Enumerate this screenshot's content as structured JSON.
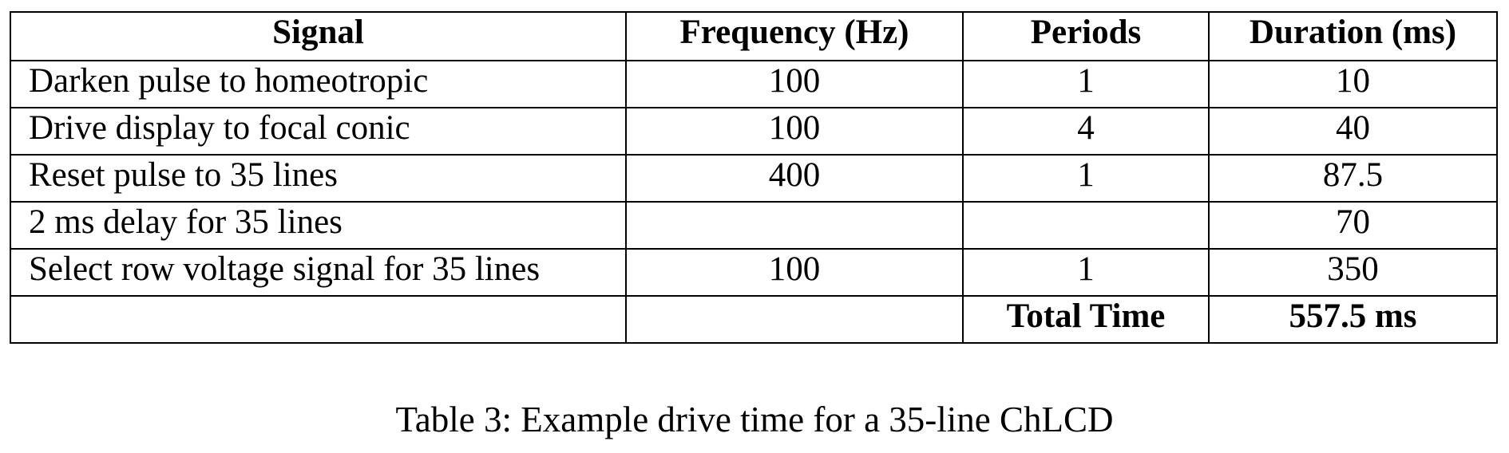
{
  "table": {
    "header": [
      "Signal",
      "Frequency (Hz)",
      "Periods",
      "Duration (ms)"
    ],
    "rows": [
      [
        "Darken pulse to homeotropic",
        "100",
        "1",
        "10"
      ],
      [
        "Drive display to focal conic",
        "100",
        "4",
        "40"
      ],
      [
        "Reset pulse to 35 lines",
        "400",
        "1",
        "87.5"
      ],
      [
        "2 ms delay for 35 lines",
        null,
        null,
        "70"
      ],
      [
        "Select row voltage signal for 35 lines",
        "100",
        "1",
        "350"
      ],
      [
        null,
        null,
        "Total Time",
        "557.5 ms"
      ]
    ]
  },
  "caption": "Table 3: Example drive time for a 35-line ChLCD"
}
